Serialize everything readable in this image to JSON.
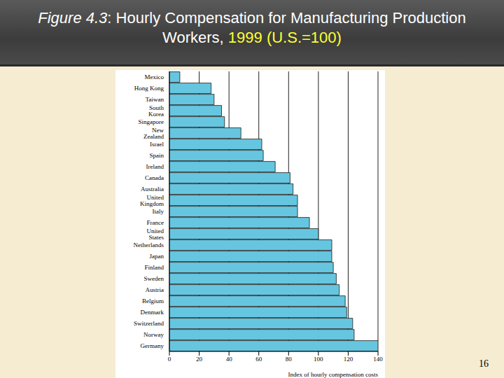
{
  "chart_data": {
    "type": "bar",
    "title": "Figure 4.3: Hourly Compensation for Manufacturing Production Workers, 1999 (U.S.=100)",
    "orientation": "horizontal",
    "categories": [
      "Mexico",
      "Hong Kong",
      "Taiwan",
      "South Korea",
      "Singapore",
      "New Zealand",
      "Israel",
      "Spain",
      "Ireland",
      "Canada",
      "Australia",
      "United Kingdom",
      "Italy",
      "France",
      "United States",
      "Netherlands",
      "Japan",
      "Finland",
      "Sweden",
      "Austria",
      "Belgium",
      "Denmark",
      "Switzerland",
      "Norway",
      "Germany"
    ],
    "values": [
      7,
      28,
      30,
      35,
      37,
      48,
      62,
      63,
      71,
      81,
      83,
      86,
      86,
      94,
      100,
      109,
      109,
      110,
      112,
      114,
      118,
      119,
      123,
      124,
      140
    ],
    "color": "#66c6e0",
    "xlim": [
      0,
      140
    ],
    "xticks": [
      0,
      20,
      40,
      60,
      80,
      100,
      120,
      140
    ],
    "x_label": "Index of hourly compensation costs",
    "grid": true,
    "page_number": "16"
  }
}
